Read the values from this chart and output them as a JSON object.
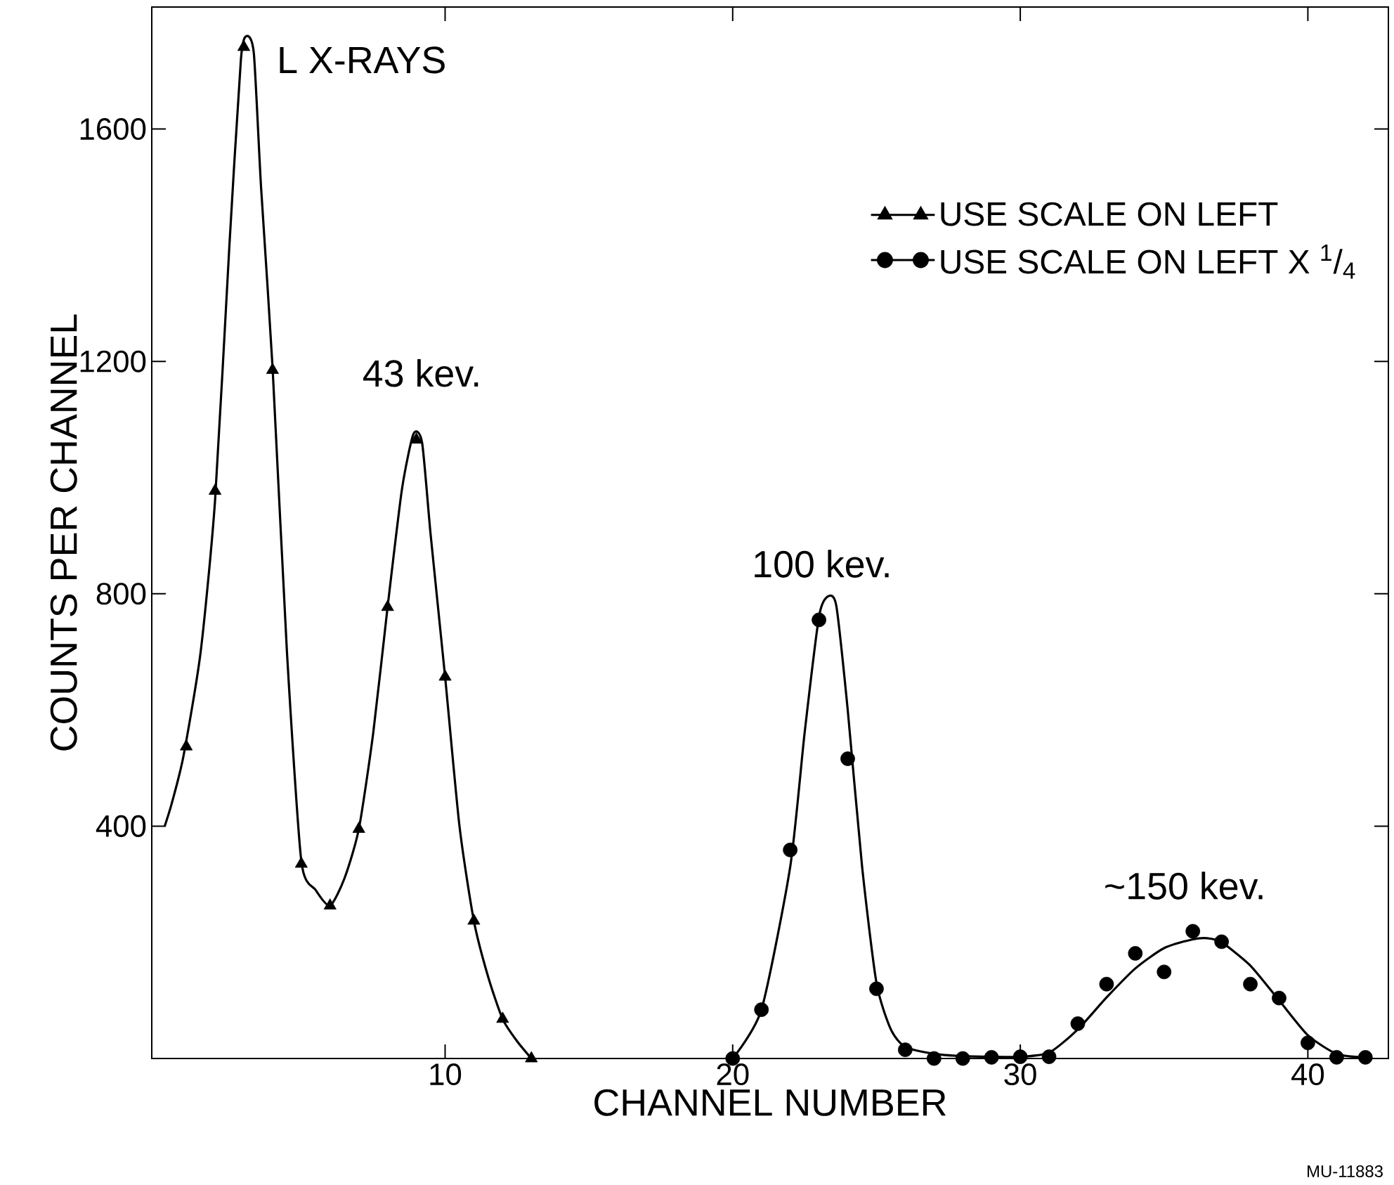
{
  "chart_data": {
    "type": "line",
    "xlabel": "CHANNEL NUMBER",
    "ylabel": "COUNTS PER CHANNEL",
    "xlim": [
      -0.2,
      42.8
    ],
    "ylim": [
      0,
      1810
    ],
    "xticks": [
      10,
      20,
      30,
      40
    ],
    "yticks": [
      400,
      800,
      1200,
      1600
    ],
    "legend": "top right",
    "grid": false,
    "series": [
      {
        "color": "#000000",
        "x": [
          0.25,
          0.5,
          0.9,
          1.5,
          2,
          2.5,
          2.9,
          3.1,
          3.35,
          3.6,
          4,
          4.5,
          5,
          5.5,
          6,
          6.5,
          7,
          7.5,
          8,
          8.5,
          8.9,
          9.2,
          9.5,
          10,
          10.5,
          11,
          11.5,
          12,
          12.5,
          13
        ],
        "values": [
          400,
          440,
          520,
          700,
          960,
          1400,
          1720,
          1760,
          1730,
          1500,
          1190,
          700,
          340,
          290,
          263,
          310,
          395,
          560,
          777,
          980,
          1075,
          1060,
          900,
          657,
          400,
          237,
          140,
          68,
          30,
          0
        ]
      },
      {
        "color": "#000000",
        "x": [
          20,
          21,
          22,
          22.5,
          23,
          23.3,
          23.6,
          24,
          24.5,
          25,
          25.5,
          26,
          27,
          28,
          29,
          30,
          31,
          32,
          33,
          34,
          35,
          36,
          36.5,
          37,
          38,
          39,
          40,
          41,
          42
        ],
        "values": [
          0,
          84,
          330,
          560,
          760,
          795,
          780,
          600,
          330,
          130,
          50,
          20,
          8,
          4,
          3,
          3,
          10,
          50,
          105,
          155,
          190,
          205,
          207,
          200,
          160,
          100,
          40,
          8,
          2
        ]
      },
      {
        "name": "USE SCALE ON LEFT",
        "type": "scatter",
        "marker": "triangle",
        "color": "#000000",
        "x": [
          1,
          2,
          3,
          4,
          5,
          6,
          7,
          8,
          9,
          10,
          11,
          12,
          13
        ],
        "values": [
          537,
          977,
          1741,
          1185,
          335,
          263,
          395,
          777,
          1065,
          657,
          237,
          68,
          0
        ]
      },
      {
        "name": "USE SCALE ON LEFT X $^{1}$/$_{4}$",
        "type": "scatter",
        "marker": "circle",
        "color": "#000000",
        "x": [
          20,
          21,
          22,
          23,
          24,
          25,
          26,
          27,
          28,
          29,
          30,
          31,
          32,
          33,
          34,
          35,
          36,
          37,
          38,
          39,
          40,
          41,
          42
        ],
        "values": [
          0,
          84,
          359,
          755,
          516,
          120,
          15,
          0,
          0,
          2,
          3,
          3,
          60,
          128,
          181,
          149,
          219,
          201,
          128,
          104,
          27,
          2,
          2
        ]
      }
    ],
    "annotations": [
      {
        "text": "L X-RAYS",
        "x": 3.1,
        "y": 1760
      },
      {
        "text": "43 kev.",
        "x": 8.9,
        "y": 1075
      },
      {
        "text": "100 kev.",
        "x": 23.3,
        "y": 795
      },
      {
        "text": "~150 kev.",
        "x": 36.5,
        "y": 207
      },
      "MU-11883"
    ]
  }
}
